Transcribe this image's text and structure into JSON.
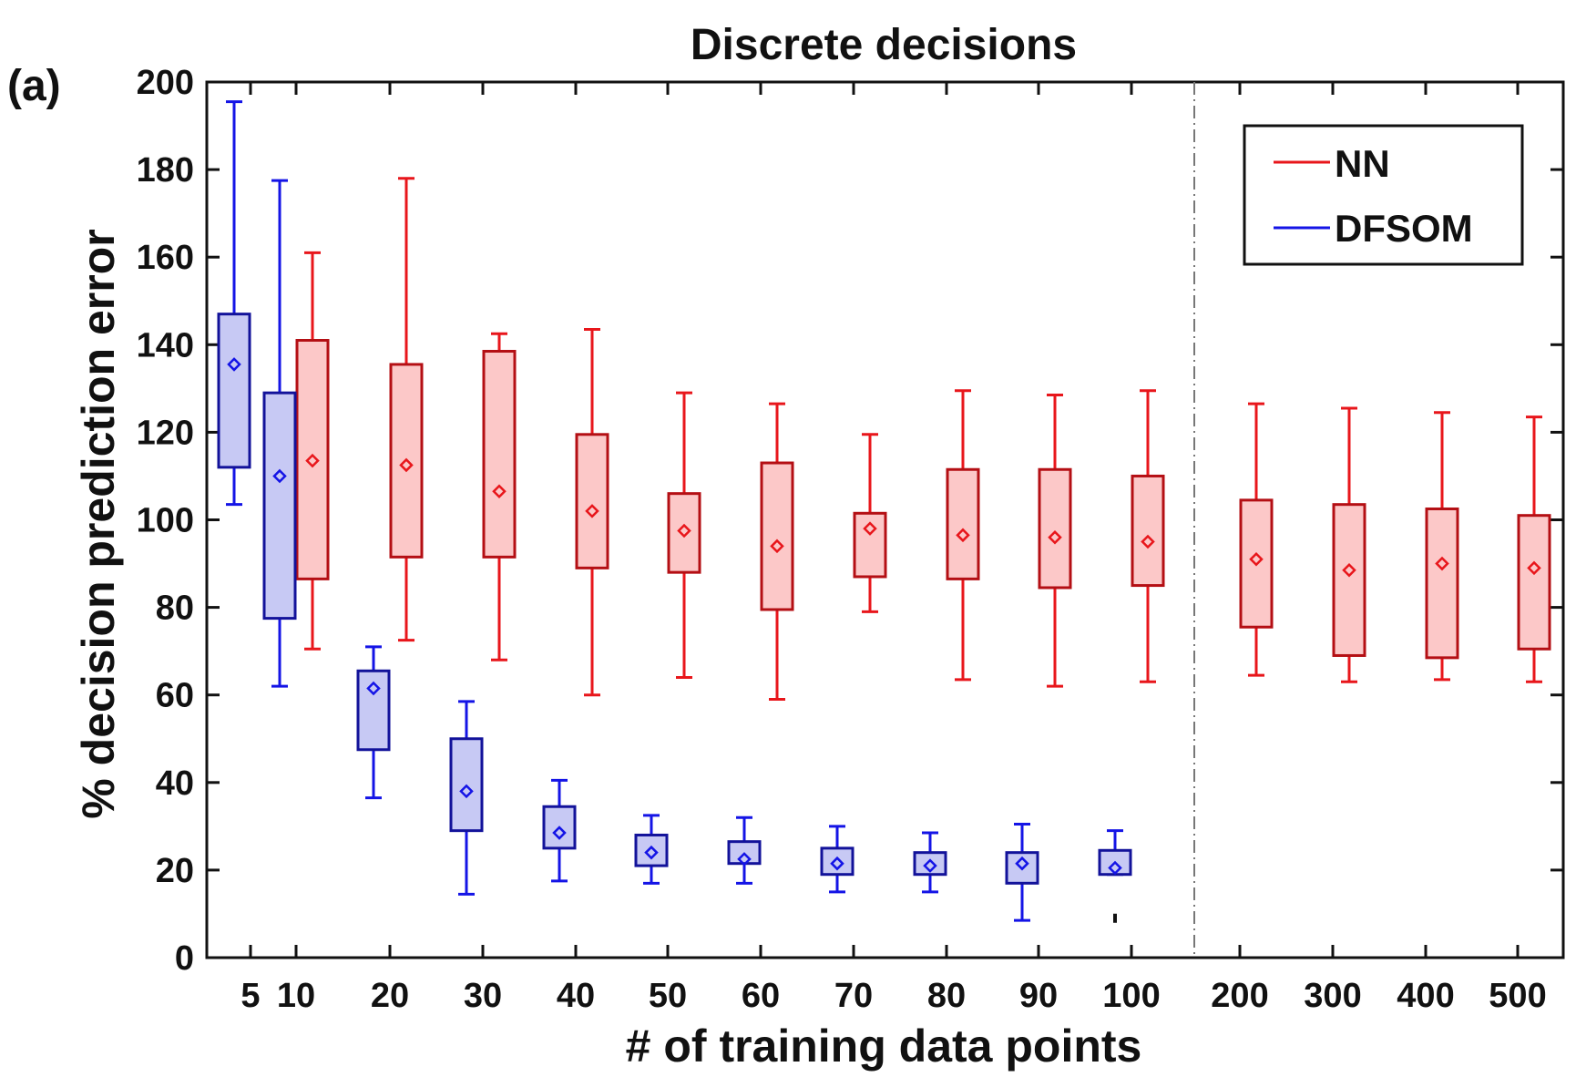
{
  "panel_label": "(a)",
  "chart_data": {
    "type": "box",
    "title": "Discrete decisions",
    "xlabel": "# of training data points",
    "ylabel": "% decision prediction error",
    "ylim": [
      0,
      200
    ],
    "yticks": [
      0,
      20,
      40,
      60,
      80,
      100,
      120,
      140,
      160,
      180,
      200
    ],
    "categories": [
      "5",
      "10",
      "20",
      "30",
      "40",
      "50",
      "60",
      "70",
      "80",
      "90",
      "100",
      "200",
      "300",
      "400",
      "500"
    ],
    "legend": {
      "position": "top-right",
      "entries": [
        "NN",
        "DFSOM"
      ]
    },
    "colors": {
      "NN": {
        "line": "#e8161b",
        "box_edge": "#b40f14",
        "fill": "#fcc8c8"
      },
      "DFSOM": {
        "line": "#1414e6",
        "box_edge": "#12129a",
        "fill": "#c7c9f4"
      }
    },
    "series": [
      {
        "name": "NN",
        "boxes": [
          {
            "x": "10",
            "min": 70.5,
            "q1": 86.5,
            "q3": 141,
            "max": 161,
            "mean": 113.5
          },
          {
            "x": "20",
            "min": 72.5,
            "q1": 91.5,
            "q3": 135.5,
            "max": 178,
            "mean": 112.5
          },
          {
            "x": "30",
            "min": 68,
            "q1": 91.5,
            "q3": 138.5,
            "max": 142.5,
            "mean": 106.5
          },
          {
            "x": "40",
            "min": 60,
            "q1": 89,
            "q3": 119.5,
            "max": 143.5,
            "mean": 102
          },
          {
            "x": "50",
            "min": 64,
            "q1": 88,
            "q3": 106,
            "max": 129,
            "mean": 97.5
          },
          {
            "x": "60",
            "min": 59,
            "q1": 79.5,
            "q3": 113,
            "max": 126.5,
            "mean": 94
          },
          {
            "x": "70",
            "min": 79,
            "q1": 87,
            "q3": 101.5,
            "max": 119.5,
            "mean": 98
          },
          {
            "x": "80",
            "min": 63.5,
            "q1": 86.5,
            "q3": 111.5,
            "max": 129.5,
            "mean": 96.5
          },
          {
            "x": "90",
            "min": 62,
            "q1": 84.5,
            "q3": 111.5,
            "max": 128.5,
            "mean": 96
          },
          {
            "x": "100",
            "min": 63,
            "q1": 85,
            "q3": 110,
            "max": 129.5,
            "mean": 95
          },
          {
            "x": "200",
            "min": 64.5,
            "q1": 75.5,
            "q3": 104.5,
            "max": 126.5,
            "mean": 91
          },
          {
            "x": "300",
            "min": 63,
            "q1": 69,
            "q3": 103.5,
            "max": 125.5,
            "mean": 88.5
          },
          {
            "x": "400",
            "min": 63.5,
            "q1": 68.5,
            "q3": 102.5,
            "max": 124.5,
            "mean": 90
          },
          {
            "x": "500",
            "min": 63,
            "q1": 70.5,
            "q3": 101,
            "max": 123.5,
            "mean": 89
          }
        ]
      },
      {
        "name": "DFSOM",
        "boxes": [
          {
            "x": "5",
            "min": 103.5,
            "q1": 112,
            "q3": 147,
            "max": 195.5,
            "mean": 135.5
          },
          {
            "x": "10",
            "min": 62,
            "q1": 77.5,
            "q3": 129,
            "max": 177.5,
            "mean": 110
          },
          {
            "x": "20",
            "min": 36.5,
            "q1": 47.5,
            "q3": 65.5,
            "max": 71,
            "mean": 61.5
          },
          {
            "x": "30",
            "min": 14.5,
            "q1": 29,
            "q3": 50,
            "max": 58.5,
            "mean": 38
          },
          {
            "x": "40",
            "min": 17.5,
            "q1": 25,
            "q3": 34.5,
            "max": 40.5,
            "mean": 28.5
          },
          {
            "x": "50",
            "min": 17,
            "q1": 21,
            "q3": 28,
            "max": 32.5,
            "mean": 24
          },
          {
            "x": "60",
            "min": 17,
            "q1": 21.5,
            "q3": 26.5,
            "max": 32,
            "mean": 22.5
          },
          {
            "x": "70",
            "min": 15,
            "q1": 19,
            "q3": 25,
            "max": 30,
            "mean": 21.5
          },
          {
            "x": "80",
            "min": 15,
            "q1": 19,
            "q3": 24,
            "max": 28.5,
            "mean": 21
          },
          {
            "x": "90",
            "min": 8.5,
            "q1": 17,
            "q3": 24,
            "max": 30.5,
            "mean": 21.5
          },
          {
            "x": "100",
            "min": 19,
            "q1": 19,
            "q3": 24.5,
            "max": 29,
            "mean": 20.5,
            "outliers": [
              9
            ]
          }
        ]
      }
    ]
  }
}
